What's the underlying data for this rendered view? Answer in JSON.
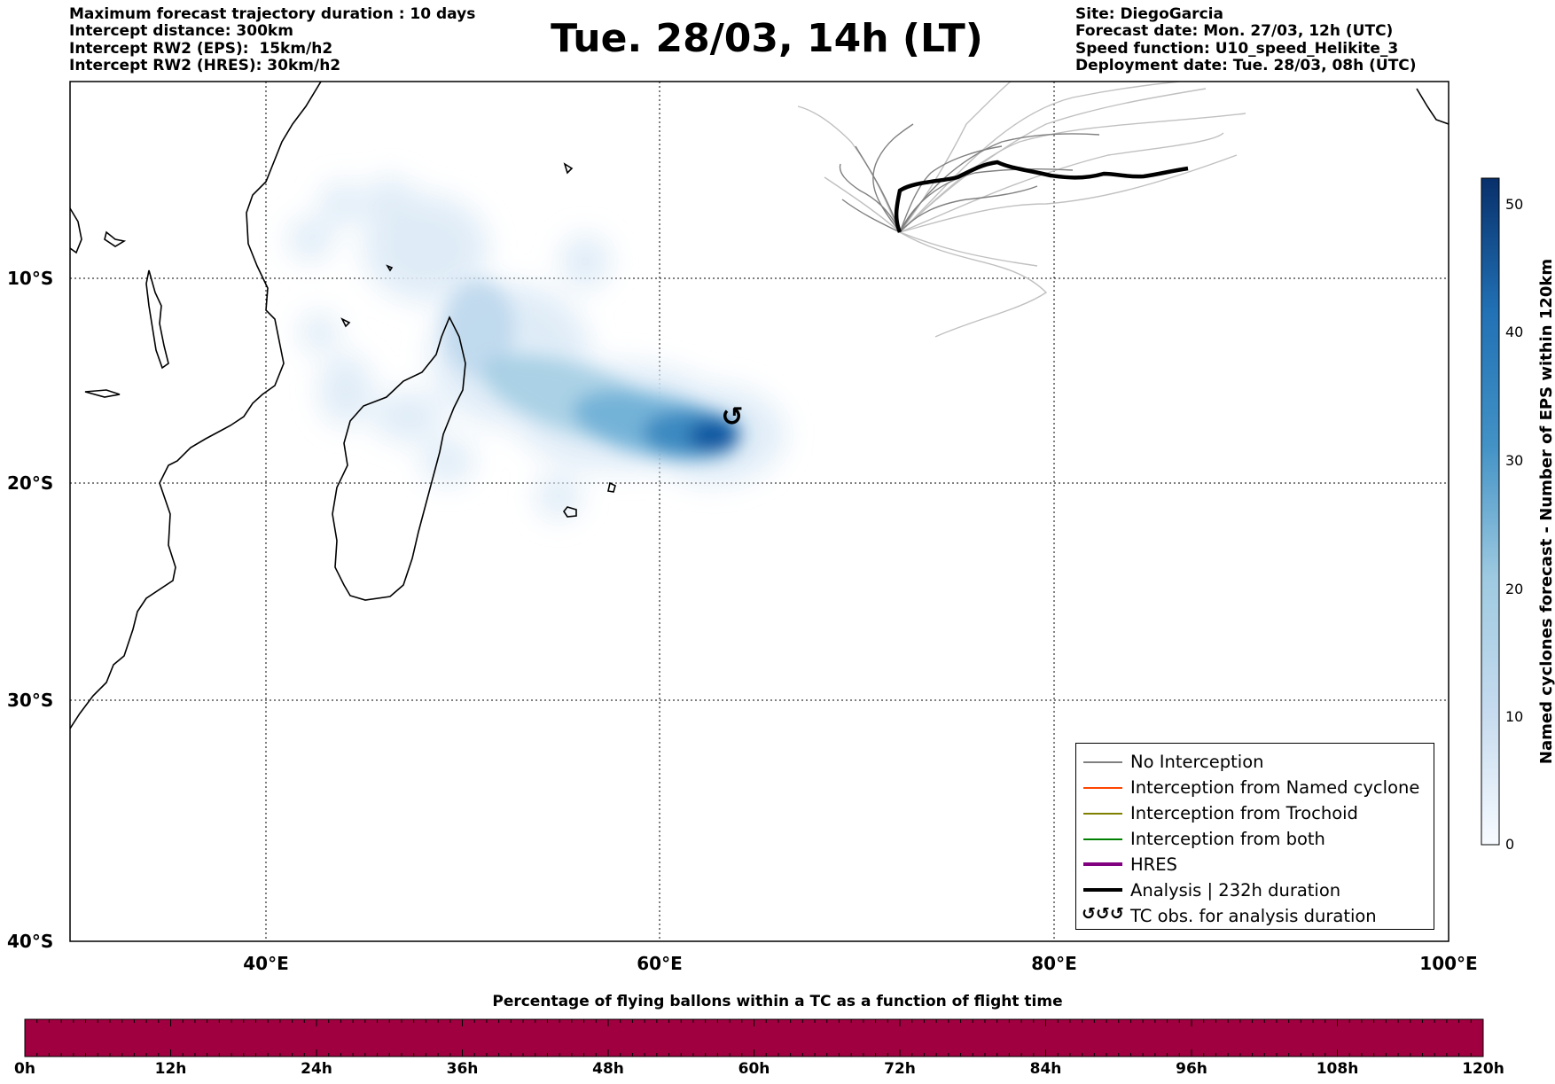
{
  "header": {
    "left_lines": [
      "Maximum forecast trajectory duration : 10 days",
      "Intercept distance: 300km",
      "Intercept RW2 (EPS):  15km/h2",
      "Intercept RW2 (HRES): 30km/h2"
    ],
    "title": "Tue. 28/03, 14h (LT)",
    "right_lines": [
      "Site: DiegoGarcia",
      "Forecast date: Mon. 27/03, 12h (UTC)",
      "Speed function: U10_speed_Helikite_3",
      "Deployment date: Tue. 28/03, 08h (UTC)"
    ]
  },
  "map": {
    "lon_range": [
      30,
      100
    ],
    "lat_range": [
      -40,
      1
    ],
    "lat_ticks": [
      "10°S",
      "20°S",
      "30°S",
      "40°S"
    ],
    "lon_ticks": [
      "40°E",
      "60°E",
      "80°E",
      "100°E"
    ],
    "tc_symbol": "↺"
  },
  "colorbar": {
    "label": "Named cyclones forecast - Number of EPS within 120km",
    "range": [
      0,
      52
    ],
    "ticks": [
      "0",
      "10",
      "20",
      "30",
      "40",
      "50"
    ],
    "colors": [
      "#f7fbff",
      "#08306b"
    ]
  },
  "legend": {
    "items": [
      {
        "label": "No Interception",
        "color": "#808080",
        "style": "thin"
      },
      {
        "label": "Interception from Named cyclone",
        "color": "#ff4500",
        "style": "thin"
      },
      {
        "label": "Interception from Trochoid",
        "color": "#808000",
        "style": "thin"
      },
      {
        "label": "Interception from both",
        "color": "#008000",
        "style": "thin"
      },
      {
        "label": "HRES",
        "color": "#800080",
        "style": "thick"
      },
      {
        "label": "Analysis | 232h duration",
        "color": "#000000",
        "style": "thick"
      },
      {
        "label": "TC obs. for analysis duration",
        "color": "#000000",
        "style": "symbol",
        "symbol": "↺↺↺"
      }
    ]
  },
  "bottom": {
    "title": "Percentage of flying ballons within a TC as a function of flight time",
    "bar_color": "#a0003f",
    "ticks": [
      "0h",
      "12h",
      "24h",
      "36h",
      "48h",
      "60h",
      "72h",
      "84h",
      "96h",
      "108h",
      "120h"
    ]
  }
}
